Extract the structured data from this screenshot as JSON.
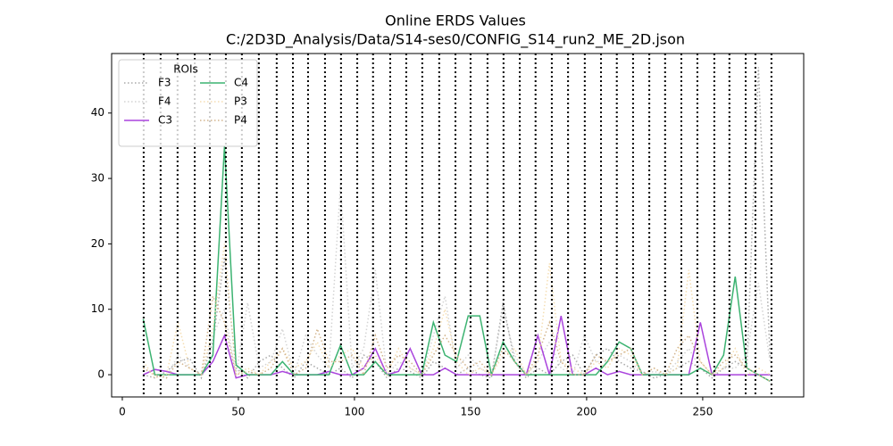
{
  "chart_data": {
    "type": "line",
    "title": "Online ERDS Values",
    "subtitle": "C:/2D3D_Analysis/Data/S14-ses0/CONFIG_S14_run2_ME_2D.json",
    "legend_title": "ROIs",
    "legend": "upper left",
    "xlim": [
      -4.6,
      293.5
    ],
    "ylim": [
      -3.4,
      49.1
    ],
    "xticks": [
      0,
      50,
      100,
      150,
      200,
      250
    ],
    "yticks": [
      0,
      10,
      20,
      30,
      40
    ],
    "vlines": [
      9.2,
      16.5,
      23.8,
      31.2,
      37.7,
      44.6,
      51.5,
      58.8,
      66.5,
      73.5,
      80,
      87.3,
      94.2,
      101.2,
      108,
      115.4,
      122.3,
      129.2,
      136.5,
      143.5,
      150,
      157.3,
      164.2,
      171.2,
      178,
      185,
      192,
      199.2,
      206.2,
      213,
      220,
      227,
      233.8,
      240.8,
      247.7,
      255,
      261.5,
      268.5,
      272.7,
      279.6
    ],
    "vline_color": "#000000",
    "x": [
      9,
      14,
      19,
      24,
      29,
      34,
      39,
      44,
      49,
      54,
      59,
      64,
      69,
      74,
      79,
      84,
      89,
      94,
      99,
      104,
      109,
      114,
      119,
      124,
      129,
      134,
      139,
      144,
      149,
      154,
      159,
      164,
      169,
      174,
      179,
      184,
      189,
      194,
      199,
      204,
      209,
      214,
      219,
      224,
      229,
      234,
      239,
      244,
      249,
      254,
      259,
      264,
      269,
      274,
      279
    ],
    "series": [
      {
        "name": "F3",
        "color": "#a9a9a9",
        "linestyle": "dotted",
        "values": [
          0,
          -0.5,
          0.5,
          2,
          2.5,
          -0.5,
          5,
          18,
          1,
          -0.5,
          2,
          3,
          1,
          -0.5,
          2,
          1,
          0,
          1,
          -0.5,
          3,
          2,
          -0.5,
          1,
          0.5,
          -0.5,
          2,
          1,
          0,
          1,
          0,
          -0.5,
          11,
          2,
          -0.5,
          1,
          0,
          2,
          3,
          0,
          3,
          4,
          2,
          1,
          0.5,
          -0.5,
          0,
          1,
          2,
          1,
          -0.5,
          1,
          2,
          1,
          47,
          2.5
        ]
      },
      {
        "name": "F4",
        "color": "#d3d3d3",
        "linestyle": "dotted",
        "values": [
          1,
          0,
          -0.5,
          3,
          1,
          0,
          6,
          10,
          0,
          11,
          1,
          2,
          7,
          0,
          6,
          3,
          1,
          29,
          1,
          4,
          16,
          0,
          2,
          1,
          0,
          6,
          12,
          1,
          3,
          1,
          0,
          10,
          3,
          0,
          2,
          5,
          1,
          0,
          6,
          2,
          2,
          3,
          2,
          0,
          0.5,
          0,
          2,
          4,
          1,
          0,
          1,
          1,
          3,
          14,
          2
        ]
      },
      {
        "name": "C3",
        "color": "#aa44dd",
        "linestyle": "solid",
        "values": [
          0,
          0.8,
          0.5,
          0,
          0,
          0,
          2,
          6,
          -0.5,
          0,
          0,
          0,
          0.5,
          0,
          0,
          0,
          0.5,
          0,
          0,
          1,
          4,
          0,
          0.5,
          4,
          0,
          0,
          1,
          0,
          0,
          0,
          0,
          0,
          0,
          0,
          6,
          0,
          9,
          0,
          0,
          1,
          0,
          0.5,
          0,
          0,
          0,
          0,
          0,
          0,
          8,
          0,
          0,
          0,
          0,
          0,
          0
        ]
      },
      {
        "name": "C4",
        "color": "#3cb371",
        "linestyle": "solid",
        "values": [
          8.5,
          0,
          0,
          0,
          0,
          0,
          3,
          35,
          1.5,
          0,
          0,
          0,
          2,
          0,
          0,
          0,
          0,
          4.5,
          0,
          0,
          2,
          0,
          0,
          0,
          0,
          8,
          3,
          2,
          9,
          9,
          0,
          5,
          2,
          0,
          0,
          0,
          0,
          0,
          0,
          0,
          2,
          5,
          4,
          0,
          0,
          0,
          0,
          0,
          1,
          0,
          3,
          15,
          1,
          0,
          -1
        ]
      },
      {
        "name": "P3",
        "color": "#f5deb3",
        "linestyle": "dotted",
        "values": [
          2,
          -0.5,
          0,
          8,
          1,
          0,
          7,
          20,
          0,
          1,
          0,
          2,
          4,
          1,
          2,
          5,
          1,
          3,
          4,
          1,
          3,
          0,
          4,
          1,
          0,
          4,
          10,
          2,
          0,
          1,
          0,
          3,
          4,
          0,
          2,
          17,
          2,
          1,
          0,
          2,
          1,
          4,
          3,
          0,
          1,
          0,
          1,
          16,
          2,
          0,
          1,
          4,
          0,
          1,
          0
        ]
      },
      {
        "name": "P4",
        "color": "#d2b48c",
        "linestyle": "dotted",
        "values": [
          1,
          0,
          -0.5,
          2,
          1,
          0,
          12,
          8,
          0,
          0.5,
          0,
          1,
          4,
          0,
          1,
          7,
          2,
          2,
          3,
          0,
          6,
          1,
          3,
          2,
          0,
          3,
          6,
          3,
          1,
          2,
          0,
          4,
          2,
          0,
          3,
          8,
          2,
          0,
          0,
          3,
          2,
          3,
          4,
          0,
          1,
          0,
          4,
          6,
          2,
          0,
          2,
          3,
          1,
          0,
          -1
        ]
      }
    ]
  }
}
